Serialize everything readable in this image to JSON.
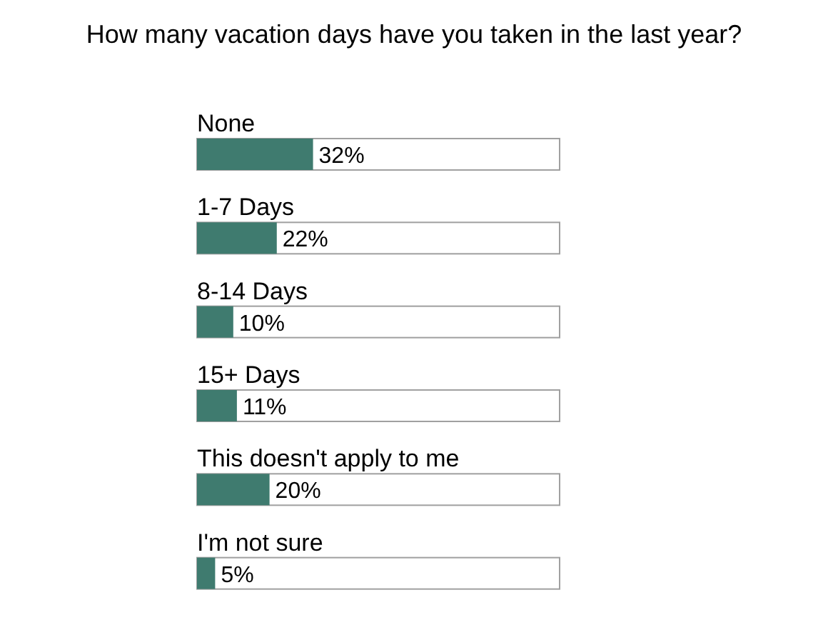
{
  "chart_data": {
    "type": "bar",
    "orientation": "horizontal",
    "title": "How many vacation days have you taken in the last year?",
    "categories": [
      "None",
      "1-7 Days",
      "8-14 Days",
      "15+ Days",
      "This doesn't apply to me",
      "I'm not sure"
    ],
    "values": [
      32,
      22,
      10,
      11,
      20,
      5
    ],
    "value_labels": [
      "32%",
      "22%",
      "10%",
      "11%",
      "20%",
      "5%"
    ],
    "color": "#3f7b6f",
    "xlim": [
      0,
      100
    ]
  }
}
